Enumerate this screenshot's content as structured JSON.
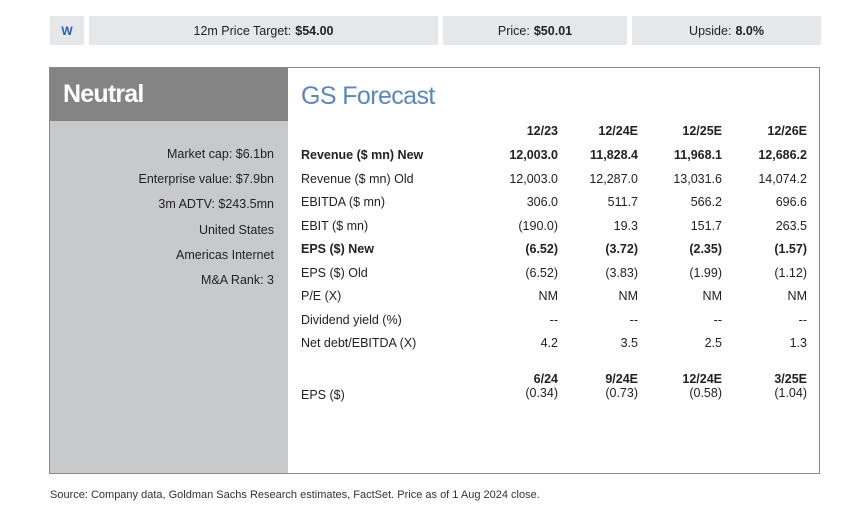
{
  "topbar": {
    "logo": "W",
    "price_target_label": "12m Price Target:",
    "price_target_value": "$54.00",
    "price_label": "Price:",
    "price_value": "$50.01",
    "upside_label": "Upside:",
    "upside_value": "8.0%"
  },
  "sidebar": {
    "rating": "Neutral",
    "items": [
      "Market cap: $6.1bn",
      "Enterprise value: $7.9bn",
      "3m ADTV: $243.5mn",
      "United States",
      "Americas Internet",
      "M&A Rank: 3"
    ]
  },
  "forecast": {
    "title": "GS Forecast",
    "columns": [
      "12/23",
      "12/24E",
      "12/25E",
      "12/26E"
    ],
    "rows": [
      {
        "label": "Revenue ($ mn) New",
        "bold": true,
        "values": [
          "12,003.0",
          "11,828.4",
          "11,968.1",
          "12,686.2"
        ]
      },
      {
        "label": "Revenue ($ mn) Old",
        "bold": false,
        "values": [
          "12,003.0",
          "12,287.0",
          "13,031.6",
          "14,074.2"
        ]
      },
      {
        "label": "EBITDA ($ mn)",
        "bold": false,
        "values": [
          "306.0",
          "511.7",
          "566.2",
          "696.6"
        ]
      },
      {
        "label": "EBIT ($ mn)",
        "bold": false,
        "values": [
          "(190.0)",
          "19.3",
          "151.7",
          "263.5"
        ]
      },
      {
        "label": "EPS ($) New",
        "bold": true,
        "values": [
          "(6.52)",
          "(3.72)",
          "(2.35)",
          "(1.57)"
        ]
      },
      {
        "label": "EPS ($) Old",
        "bold": false,
        "values": [
          "(6.52)",
          "(3.83)",
          "(1.99)",
          "(1.12)"
        ]
      },
      {
        "label": "P/E (X)",
        "bold": false,
        "values": [
          "NM",
          "NM",
          "NM",
          "NM"
        ]
      },
      {
        "label": "Dividend yield (%)",
        "bold": false,
        "values": [
          "--",
          "--",
          "--",
          "--"
        ]
      },
      {
        "label": "Net debt/EBITDA (X)",
        "bold": false,
        "values": [
          "4.2",
          "3.5",
          "2.5",
          "1.3"
        ]
      }
    ],
    "quarterly": {
      "label": "EPS ($)",
      "columns": [
        "6/24",
        "9/24E",
        "12/24E",
        "3/25E"
      ],
      "values": [
        "(0.34)",
        "(0.73)",
        "(0.58)",
        "(1.04)"
      ]
    }
  },
  "source": "Source: Company data, Goldman Sachs Research estimates, FactSet. Price as of 1 Aug 2024 close."
}
